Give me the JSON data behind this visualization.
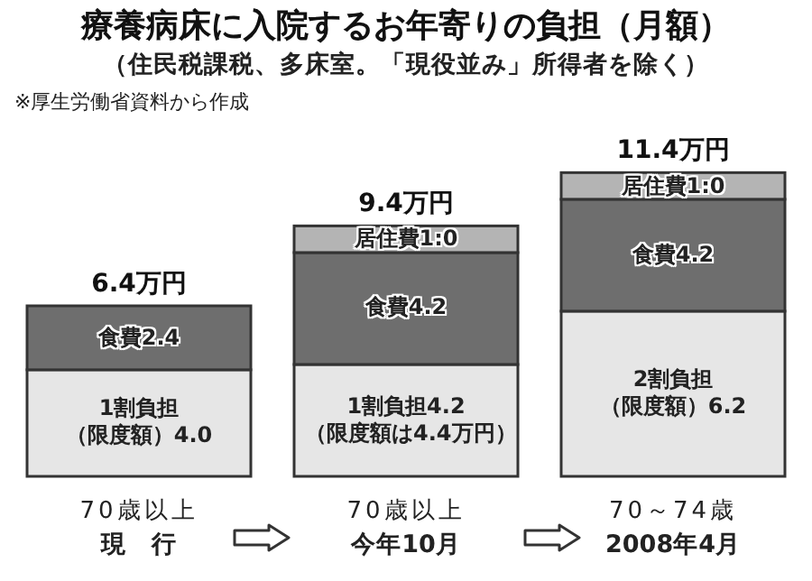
{
  "chart_data": {
    "type": "bar",
    "title": "療養病床に入院するお年寄りの負担（月額）",
    "subtitle": "（住民税課税、多床室。「現役並み」所得者を除く）",
    "annotations": [
      "※厚生労働省資料から作成"
    ],
    "categories": [
      "70歳以上現　行",
      "70歳以上今年10月",
      "70～74歳2008年4月"
    ],
    "stacked": true,
    "totals": [
      "6.4万円",
      "9.4万円",
      "11.4万円"
    ],
    "series": [
      {
        "color": "#e6e6e6",
        "values": [
          4.0,
          4.2,
          6.2
        ],
        "value_labels": [
          "1割負担（限度額）4.0",
          "1割負担4.2（限度額は4.4万円）",
          "2割負担（限度額）6.2"
        ]
      },
      {
        "color": "#6e6e6e",
        "values": [
          2.4,
          4.2,
          4.2
        ],
        "value_labels": [
          "食費2.4",
          "食費4.2",
          "食費4.2"
        ]
      },
      {
        "color": "#b4b4b4",
        "values": [
          null,
          1.0,
          1.0
        ],
        "value_labels": [
          null,
          "居住費1:0",
          "居住費1:0"
        ]
      }
    ]
  }
}
